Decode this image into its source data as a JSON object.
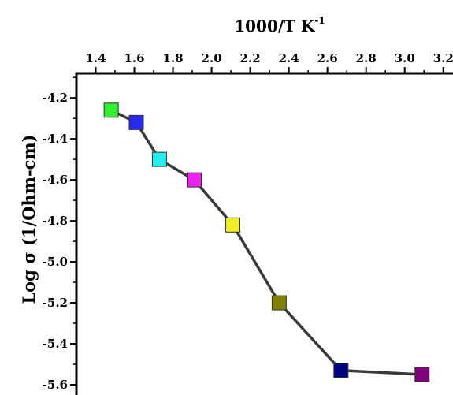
{
  "chart_data": {
    "type": "scatter",
    "title": "",
    "xlabel": "1000/T K",
    "xlabel_superscript": "-1",
    "ylabel": "Log σ (1/Ohm-cm)",
    "xlim": [
      1.3,
      3.25
    ],
    "ylim": [
      -5.65,
      -4.08
    ],
    "x_ticks": [
      "1.4",
      "1.6",
      "1.8",
      "2.0",
      "2.2",
      "2.4",
      "2.6",
      "2.8",
      "3.0",
      "3.2"
    ],
    "y_ticks": [
      "-4.2",
      "-4.4",
      "-4.6",
      "-4.8",
      "-5.0",
      "-5.2",
      "-5.4",
      "-5.6"
    ],
    "x_axis_position": "top",
    "grid": false,
    "connect_points": true,
    "line_color": "#3a3a3a",
    "points": [
      {
        "x": 1.48,
        "y": -4.26,
        "color": "#33ee33"
      },
      {
        "x": 1.61,
        "y": -4.32,
        "color": "#2a2aee"
      },
      {
        "x": 1.73,
        "y": -4.5,
        "color": "#22eeee"
      },
      {
        "x": 1.91,
        "y": -4.6,
        "color": "#ee22ee"
      },
      {
        "x": 2.11,
        "y": -4.82,
        "color": "#eeee22"
      },
      {
        "x": 2.35,
        "y": -5.2,
        "color": "#808000"
      },
      {
        "x": 2.67,
        "y": -5.53,
        "color": "#000080"
      },
      {
        "x": 3.09,
        "y": -5.55,
        "color": "#800080"
      }
    ]
  }
}
